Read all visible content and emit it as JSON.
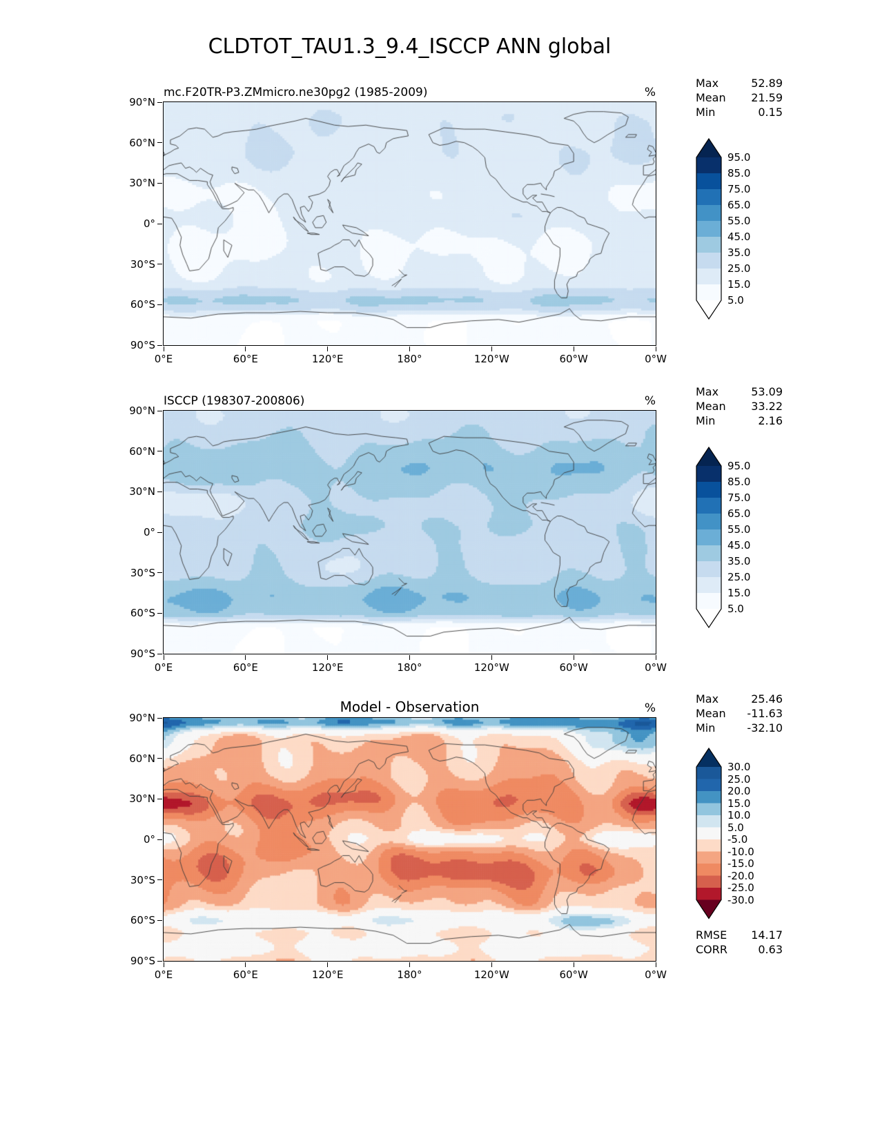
{
  "figure_title": "CLDTOT_TAU1.3_9.4_ISCCP ANN global",
  "axes": {
    "y_ticks": [
      "90°N",
      "60°N",
      "30°N",
      "0°",
      "30°S",
      "60°S",
      "90°S"
    ],
    "x_ticks": [
      "0°E",
      "60°E",
      "120°E",
      "180°",
      "120°W",
      "60°W",
      "0°W"
    ]
  },
  "panels": [
    {
      "id": "model",
      "title": "mc.F20TR-P3.ZMmicro.ne30pg2 (1985-2009)",
      "units": "%",
      "stats": [
        {
          "label": "Max",
          "value": "52.89"
        },
        {
          "label": "Mean",
          "value": "21.59"
        },
        {
          "label": "Min",
          "value": "0.15"
        }
      ],
      "colorbar": {
        "tick_labels": [
          "95.0",
          "85.0",
          "75.0",
          "65.0",
          "55.0",
          "45.0",
          "35.0",
          "25.0",
          "15.0",
          "5.0"
        ],
        "colors_low_to_high": [
          "#ffffff",
          "#f7fbff",
          "#deebf7",
          "#c6dbef",
          "#9ecae1",
          "#6baed6",
          "#4292c6",
          "#2171b5",
          "#08519c",
          "#08306b",
          "#052451"
        ]
      }
    },
    {
      "id": "obs",
      "title": "ISCCP (198307-200806)",
      "units": "%",
      "stats": [
        {
          "label": "Max",
          "value": "53.09"
        },
        {
          "label": "Mean",
          "value": "33.22"
        },
        {
          "label": "Min",
          "value": "2.16"
        }
      ],
      "colorbar": {
        "tick_labels": [
          "95.0",
          "85.0",
          "75.0",
          "65.0",
          "55.0",
          "45.0",
          "35.0",
          "25.0",
          "15.0",
          "5.0"
        ],
        "colors_low_to_high": [
          "#ffffff",
          "#f7fbff",
          "#deebf7",
          "#c6dbef",
          "#9ecae1",
          "#6baed6",
          "#4292c6",
          "#2171b5",
          "#08519c",
          "#08306b",
          "#052451"
        ]
      }
    },
    {
      "id": "diff",
      "title": "Model - Observation",
      "units": "%",
      "stats": [
        {
          "label": "Max",
          "value": "25.46"
        },
        {
          "label": "Mean",
          "value": "-11.63"
        },
        {
          "label": "Min",
          "value": "-32.10"
        }
      ],
      "metrics": [
        {
          "label": "RMSE",
          "value": "14.17"
        },
        {
          "label": "CORR",
          "value": "0.63"
        }
      ],
      "colorbar": {
        "tick_labels": [
          "30.0",
          "25.0",
          "20.0",
          "15.0",
          "10.0",
          "5.0",
          "-5.0",
          "-10.0",
          "-15.0",
          "-20.0",
          "-25.0",
          "-30.0"
        ],
        "colors_low_to_high": [
          "#67001f",
          "#b2182b",
          "#d6604d",
          "#ef8a62",
          "#f4a582",
          "#fddbc7",
          "#f7f7f7",
          "#d1e5f0",
          "#92c5de",
          "#4393c3",
          "#2166ac",
          "#1a5899",
          "#053061"
        ]
      }
    }
  ],
  "chart_data": [
    {
      "type": "heatmap",
      "title": "mc.F20TR-P3.ZMmicro.ne30pg2 (1985-2009)",
      "units": "%",
      "stats": {
        "max": 52.89,
        "mean": 21.59,
        "min": 0.15
      },
      "contour_levels": [
        5,
        15,
        25,
        35,
        45,
        55,
        65,
        75,
        85,
        95
      ],
      "colormap_hint": "Blues, extended arrows both ends",
      "x": {
        "ticks": [
          "0°E",
          "60°E",
          "120°E",
          "180°",
          "120°W",
          "60°W",
          "0°W"
        ],
        "range_deg": [
          0,
          360
        ]
      },
      "y": {
        "ticks": [
          "90°N",
          "60°N",
          "30°N",
          "0°",
          "30°S",
          "60°S",
          "90°S"
        ],
        "range_deg": [
          -90,
          90
        ]
      }
    },
    {
      "type": "heatmap",
      "title": "ISCCP (198307-200806)",
      "units": "%",
      "stats": {
        "max": 53.09,
        "mean": 33.22,
        "min": 2.16
      },
      "contour_levels": [
        5,
        15,
        25,
        35,
        45,
        55,
        65,
        75,
        85,
        95
      ],
      "colormap_hint": "Blues, extended arrows both ends",
      "x": {
        "ticks": [
          "0°E",
          "60°E",
          "120°E",
          "180°",
          "120°W",
          "60°W",
          "0°W"
        ],
        "range_deg": [
          0,
          360
        ]
      },
      "y": {
        "ticks": [
          "90°N",
          "60°N",
          "30°N",
          "0°",
          "30°S",
          "60°S",
          "90°S"
        ],
        "range_deg": [
          -90,
          90
        ]
      }
    },
    {
      "type": "heatmap",
      "title": "Model - Observation",
      "units": "%",
      "stats": {
        "max": 25.46,
        "mean": -11.63,
        "min": -32.1
      },
      "extra_metrics": {
        "rmse": 14.17,
        "corr": 0.63
      },
      "contour_levels": [
        -30,
        -25,
        -20,
        -15,
        -10,
        -5,
        5,
        10,
        15,
        20,
        25,
        30
      ],
      "colormap_hint": "RdBu diverging, extended arrows both ends",
      "x": {
        "ticks": [
          "0°E",
          "60°E",
          "120°E",
          "180°",
          "120°W",
          "60°W",
          "0°W"
        ],
        "range_deg": [
          0,
          360
        ]
      },
      "y": {
        "ticks": [
          "90°N",
          "60°N",
          "30°N",
          "0°",
          "30°S",
          "60°S",
          "90°S"
        ],
        "range_deg": [
          -90,
          90
        ]
      }
    }
  ]
}
